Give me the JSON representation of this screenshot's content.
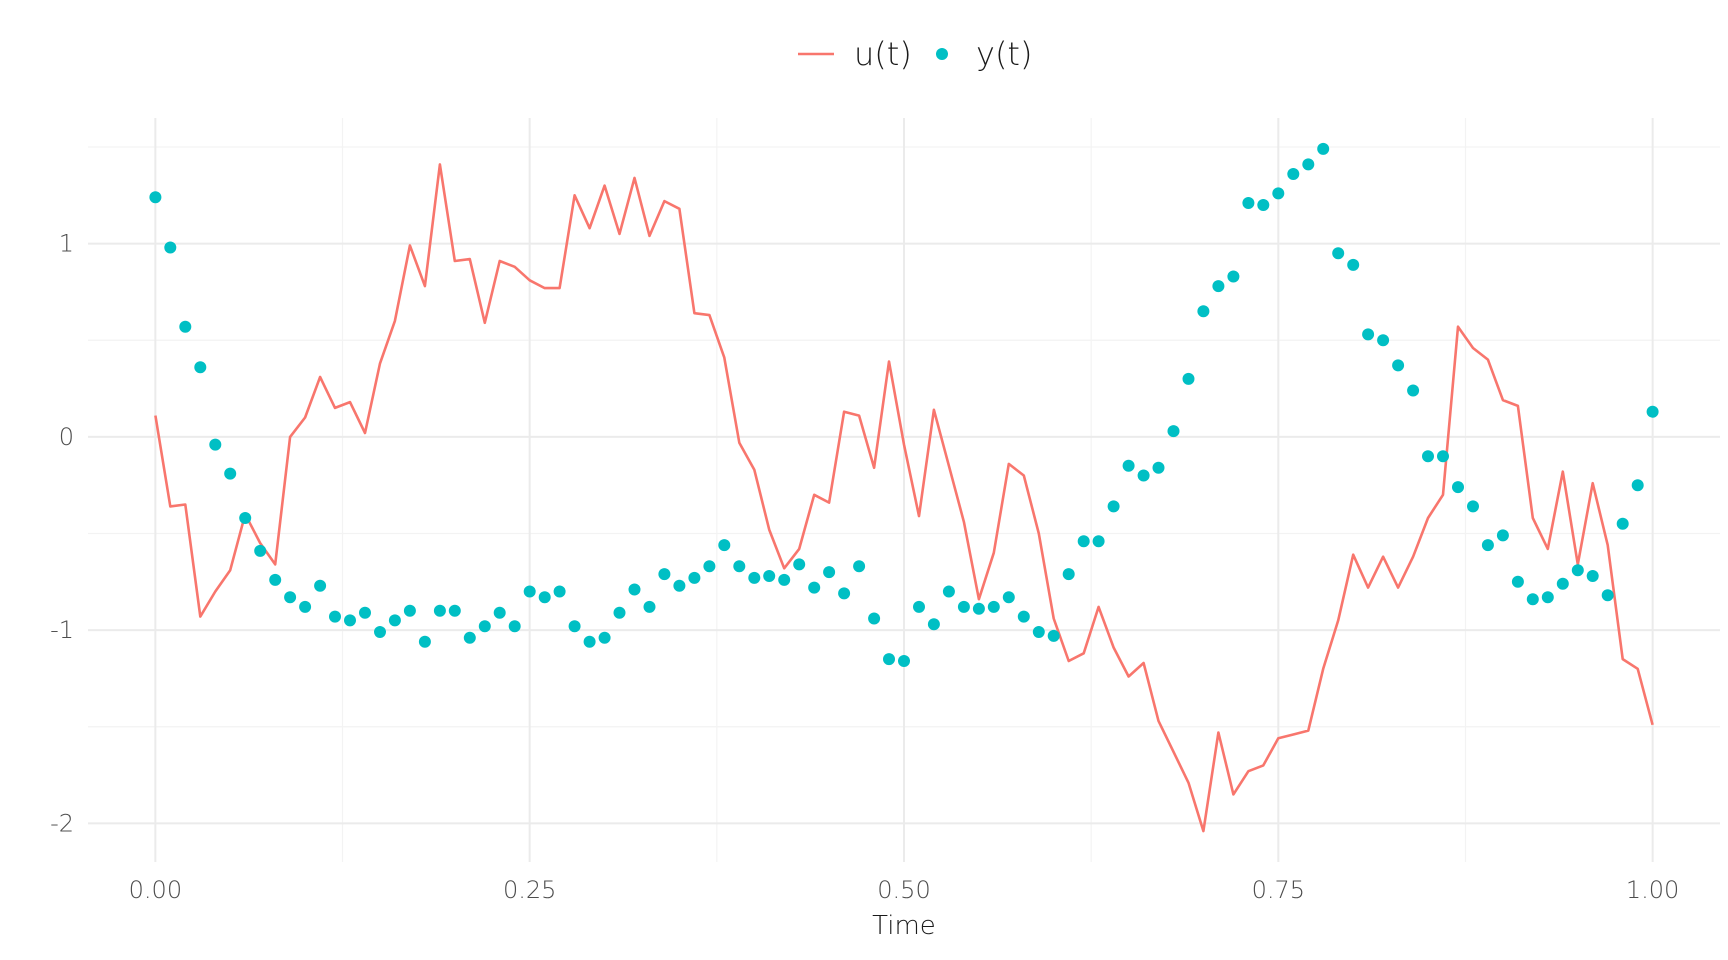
{
  "chart_data": {
    "type": "line",
    "title": "",
    "xlabel": "Time",
    "ylabel": "",
    "xlim": [
      -0.045,
      1.045
    ],
    "ylim": [
      -2.2,
      1.65
    ],
    "x_ticks": [
      0,
      0.25,
      0.5,
      0.75,
      1
    ],
    "x_tick_labels": [
      "0.00",
      "0.25",
      "0.50",
      "0.75",
      "1.00"
    ],
    "y_ticks": [
      -2,
      -1,
      0,
      1
    ],
    "y_tick_labels": [
      "-2",
      "-1",
      "0",
      "1"
    ],
    "grid": true,
    "legend_position": "top",
    "x": [
      0.0,
      0.01,
      0.02,
      0.03,
      0.04,
      0.05,
      0.06,
      0.07,
      0.08,
      0.09,
      0.1,
      0.11,
      0.12,
      0.13,
      0.14,
      0.15,
      0.16,
      0.17,
      0.18,
      0.19,
      0.2,
      0.21,
      0.22,
      0.23,
      0.24,
      0.25,
      0.26,
      0.27,
      0.28,
      0.29,
      0.3,
      0.31,
      0.32,
      0.33,
      0.34,
      0.35,
      0.36,
      0.37,
      0.38,
      0.39,
      0.4,
      0.41,
      0.42,
      0.43,
      0.44,
      0.45,
      0.46,
      0.47,
      0.48,
      0.49,
      0.5,
      0.51,
      0.52,
      0.53,
      0.54,
      0.55,
      0.56,
      0.57,
      0.58,
      0.59,
      0.6,
      0.61,
      0.62,
      0.63,
      0.64,
      0.65,
      0.66,
      0.67,
      0.68,
      0.69,
      0.7,
      0.71,
      0.72,
      0.73,
      0.74,
      0.75,
      0.76,
      0.77,
      0.78,
      0.79,
      0.8,
      0.81,
      0.82,
      0.83,
      0.84,
      0.85,
      0.86,
      0.87,
      0.88,
      0.89,
      0.9,
      0.91,
      0.92,
      0.93,
      0.94,
      0.95,
      0.96,
      0.97,
      0.98,
      0.99,
      1.0
    ],
    "series": [
      {
        "name": "u(t)",
        "kind": "line",
        "color": "#F8766D",
        "values": [
          0.11,
          -0.36,
          -0.35,
          -0.93,
          -0.8,
          -0.69,
          -0.4,
          -0.55,
          -0.66,
          0.0,
          0.1,
          0.31,
          0.15,
          0.18,
          0.02,
          0.38,
          0.6,
          0.99,
          0.78,
          1.41,
          0.91,
          0.92,
          0.59,
          0.91,
          0.88,
          0.81,
          0.77,
          0.77,
          1.25,
          1.08,
          1.3,
          1.05,
          1.34,
          1.04,
          1.22,
          1.18,
          0.64,
          0.63,
          0.41,
          -0.03,
          -0.17,
          -0.48,
          -0.68,
          -0.58,
          -0.3,
          -0.34,
          0.13,
          0.11,
          -0.16,
          0.39,
          -0.04,
          -0.41,
          0.14,
          -0.15,
          -0.44,
          -0.84,
          -0.6,
          -0.14,
          -0.2,
          -0.5,
          -0.94,
          -1.16,
          -1.12,
          -0.88,
          -1.09,
          -1.24,
          -1.17,
          -1.47,
          -1.63,
          -1.79,
          -2.04,
          -1.53,
          -1.85,
          -1.73,
          -1.7,
          -1.56,
          -1.54,
          -1.52,
          -1.2,
          -0.95,
          -0.61,
          -0.78,
          -0.62,
          -0.78,
          -0.62,
          -0.42,
          -0.3,
          0.57,
          0.46,
          0.4,
          0.19,
          0.16,
          -0.42,
          -0.58,
          -0.18,
          -0.66,
          -0.24,
          -0.56,
          -1.15,
          -1.2,
          -1.49
        ]
      },
      {
        "name": "y(t)",
        "kind": "scatter",
        "color": "#00BFC4",
        "values": [
          1.24,
          0.98,
          0.57,
          0.36,
          -0.04,
          -0.19,
          -0.42,
          -0.59,
          -0.74,
          -0.83,
          -0.88,
          -0.77,
          -0.93,
          -0.95,
          -0.91,
          -1.01,
          -0.95,
          -0.9,
          -1.06,
          -0.9,
          -0.9,
          -1.04,
          -0.98,
          -0.91,
          -0.98,
          -0.8,
          -0.83,
          -0.8,
          -0.98,
          -1.06,
          -1.04,
          -0.91,
          -0.79,
          -0.88,
          -0.71,
          -0.77,
          -0.73,
          -0.67,
          -0.56,
          -0.67,
          -0.73,
          -0.72,
          -0.74,
          -0.66,
          -0.78,
          -0.7,
          -0.81,
          -0.67,
          -0.94,
          -1.15,
          -1.16,
          -0.88,
          -0.97,
          -0.8,
          -0.88,
          -0.89,
          -0.88,
          -0.83,
          -0.93,
          -1.01,
          -1.03,
          -0.71,
          -0.54,
          -0.54,
          -0.36,
          -0.15,
          -0.2,
          -0.16,
          0.03,
          0.3,
          0.65,
          0.78,
          0.83,
          1.21,
          1.2,
          1.26,
          1.36,
          1.41,
          1.49,
          0.95,
          0.89,
          0.53,
          0.5,
          0.37,
          0.24,
          -0.1,
          -0.1,
          -0.26,
          -0.36,
          -0.56,
          -0.51,
          -0.75,
          -0.84,
          -0.83,
          -0.76,
          -0.69,
          -0.72,
          -0.82,
          -0.45,
          -0.25,
          0.13
        ]
      }
    ]
  }
}
